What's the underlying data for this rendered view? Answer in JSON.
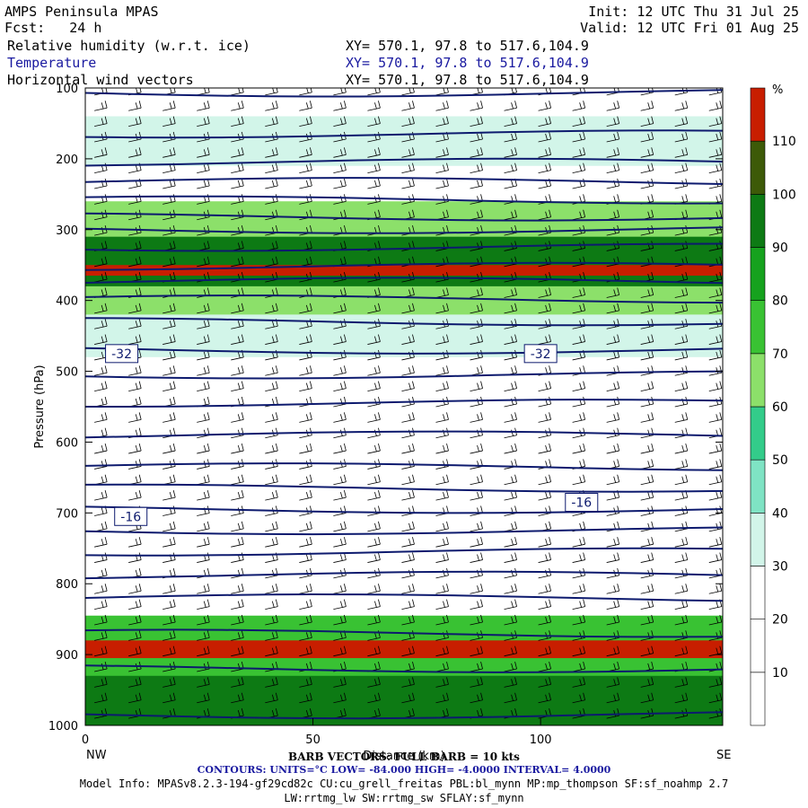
{
  "header": {
    "model": "AMPS Peninsula MPAS",
    "fcst": "Fcst:   24 h",
    "init": "Init: 12 UTC Thu 31 Jul 25",
    "valid": "Valid: 12 UTC Fri 01 Aug 25",
    "field1": "Relative humidity (w.r.t. ice)",
    "field2": "Temperature",
    "field3": "Horizontal wind vectors",
    "xy": "XY= 570.1, 97.8 to 517.6,104.9"
  },
  "colors": {
    "temperature_contour": "#0d1a6e",
    "rh_bins": [
      "#ffffff",
      "#ffffff",
      "#ffffff",
      "#d2f5e9",
      "#7fe3c4",
      "#33cc8a",
      "#8ce06a",
      "#39c233",
      "#16a21e",
      "#0d7a14",
      "#3d5a08",
      "#c81e00"
    ]
  },
  "chart_data": {
    "type": "contour",
    "xlabel": "Distance (km)",
    "ylabel": "Pressure (hPa)",
    "xlim": [
      0,
      140
    ],
    "ylim": [
      1000,
      100
    ],
    "xticks": [
      0,
      50,
      100
    ],
    "yticks": [
      100,
      200,
      300,
      400,
      500,
      600,
      700,
      800,
      900,
      1000
    ],
    "left_end": "NW",
    "right_end": "SE",
    "colorbar": {
      "unit": "%",
      "levels": [
        10,
        20,
        30,
        40,
        50,
        60,
        70,
        80,
        90,
        100,
        110
      ]
    },
    "rh_regions": [
      {
        "p_top": 845,
        "p_bottom": 1000,
        "rh": 75
      },
      {
        "p_top": 880,
        "p_bottom": 905,
        "rh": 115
      },
      {
        "p_top": 930,
        "p_bottom": 1000,
        "rh": 95
      },
      {
        "p_top": 260,
        "p_bottom": 420,
        "rh": 65
      },
      {
        "p_top": 310,
        "p_bottom": 380,
        "rh": 95
      },
      {
        "p_top": 350,
        "p_bottom": 365,
        "rh": 115
      },
      {
        "p_top": 140,
        "p_bottom": 210,
        "rh": 35
      },
      {
        "p_top": 420,
        "p_bottom": 480,
        "rh": 35
      }
    ],
    "temperature_labels": [
      {
        "x": 8,
        "p": 475,
        "text": "-32"
      },
      {
        "x": 100,
        "p": 475,
        "text": "-32"
      },
      {
        "x": 10,
        "p": 705,
        "text": "-16"
      },
      {
        "x": 109,
        "p": 685,
        "text": "-16"
      }
    ],
    "contours_info": {
      "units": "CONTOURS:  UNITS=°C  LOW=  -84.000      HIGH=  -4.0000      INTERVAL=    4.0000"
    },
    "barb_info": "BARB VECTORS:  FULL BARB = 10 kts"
  },
  "footer": {
    "model_info": "Model Info: MPASv8.2.3-194-gf29cd82c CU:cu_grell_freitas PBL:bl_mynn MP:mp_thompson SF:sf_noahmp 2.7",
    "model_info2": "LW:rrtmg_lw SW:rrtmg_sw SFLAY:sf_mynn"
  }
}
